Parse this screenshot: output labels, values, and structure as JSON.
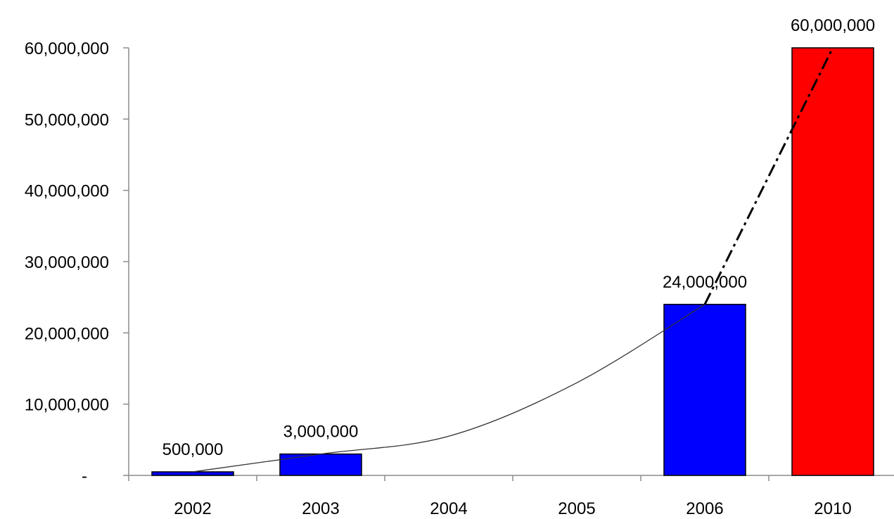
{
  "chart_data": {
    "type": "bar",
    "categories": [
      "2002",
      "2003",
      "2004",
      "2005",
      "2006",
      "2010"
    ],
    "values": [
      500000,
      3000000,
      null,
      null,
      24000000,
      60000000
    ],
    "value_labels": [
      "500,000",
      "3,000,000",
      "",
      "",
      "24,000,000",
      "60,000,000"
    ],
    "bar_colors": [
      "#0000ff",
      "#0000ff",
      null,
      null,
      "#0000ff",
      "#ff0000"
    ],
    "ylim": [
      0,
      60000000
    ],
    "yticks": [
      0,
      10000000,
      20000000,
      30000000,
      40000000,
      50000000,
      60000000
    ],
    "ytick_labels": [
      "-",
      "10,000,000",
      "20,000,000",
      "30,000,000",
      "40,000,000",
      "50,000,000",
      "60,000,000"
    ],
    "trend_line": {
      "solid": [
        {
          "x": "2002",
          "y": 500000
        },
        {
          "x": "2003",
          "y": 3000000
        },
        {
          "x": "2004",
          "y": 5500000
        },
        {
          "x": "2005",
          "y": 13000000
        },
        {
          "x": "2006",
          "y": 24000000
        }
      ],
      "dashed": [
        {
          "x": "2006",
          "y": 24000000
        },
        {
          "x": "2010",
          "y": 60000000
        }
      ]
    },
    "title": "",
    "xlabel": "",
    "ylabel": "",
    "grid": false,
    "legend": "none"
  }
}
